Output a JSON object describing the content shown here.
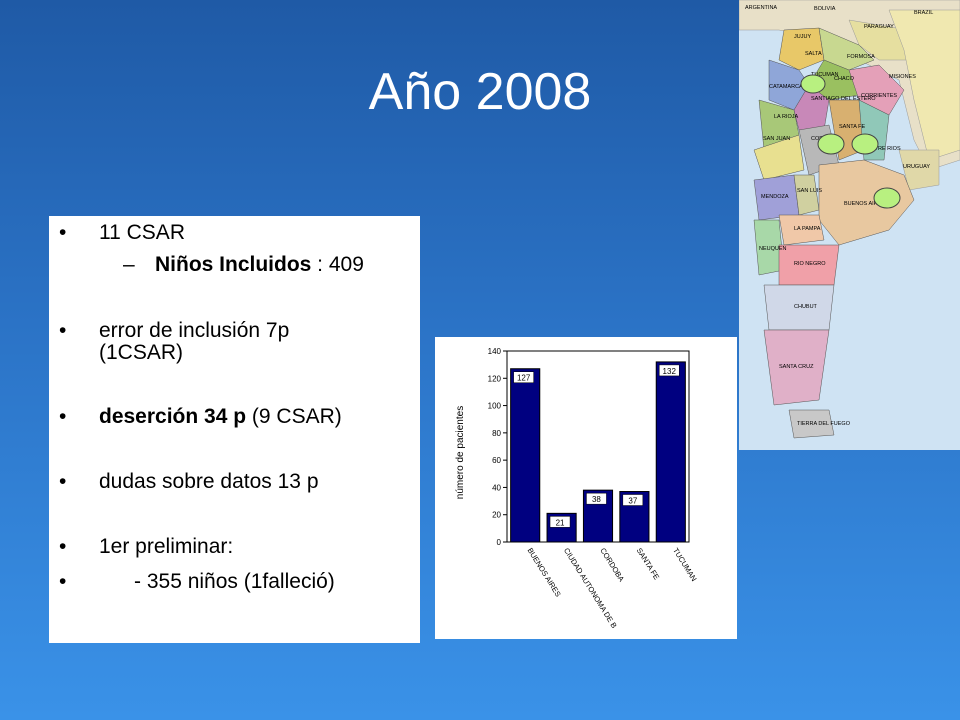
{
  "slide": {
    "title": "Año 2008"
  },
  "bullets": {
    "b1": "11 CSAR",
    "sub_dash": "–",
    "sub_bold": "Niños Incluidos",
    "sub_rest": " : 409",
    "b2_line1": "error de inclusión 7p",
    "b2_line2": "(1CSAR)",
    "b3_bold": "deserción 34 p",
    "b3_rest": " (9 CSAR)",
    "b4": "dudas sobre datos 13 p",
    "b5": "1er preliminar:",
    "b6": "      - 355 niños (1falleció)",
    "bullet_glyph": "•"
  },
  "chart_data": {
    "type": "bar",
    "categories": [
      "BUENOS AIRES",
      "CIUDAD AUTONOMA DE B",
      "CORDOBA",
      "SANTA FE",
      "TUCUMAN"
    ],
    "values": [
      127,
      21,
      38,
      37,
      132
    ],
    "ylabel": "número de pacientes",
    "ylim": [
      0,
      140
    ],
    "yticks": [
      "0",
      "20",
      "40",
      "60",
      "80",
      "100",
      "120",
      "140"
    ],
    "bar_color": "#000080"
  },
  "map": {
    "labels": [
      "ARGENTINA",
      "BOLIVIA",
      "PARAGUAY",
      "BRAZIL",
      "JUJUY",
      "SALTA",
      "FORMOSA",
      "CHACO",
      "TUCUMAN",
      "CATAMARCA",
      "SANTIAGO DEL ESTERO",
      "CORRIENTES",
      "MISIONES",
      "LA RIOJA",
      "SAN JUAN",
      "SANTA FE",
      "CORDOBA",
      "ENTRE RIOS",
      "URUGUAY",
      "MENDOZA",
      "SAN LUIS",
      "BUENOS AIRES",
      "LA PAMPA",
      "NEUQUEN",
      "RIO NEGRO",
      "CHUBUT",
      "SANTA CRUZ",
      "TIERRA DEL FUEGO"
    ],
    "colors": {
      "marker": "#b8f080",
      "ocean": "#cfe3f3"
    }
  }
}
